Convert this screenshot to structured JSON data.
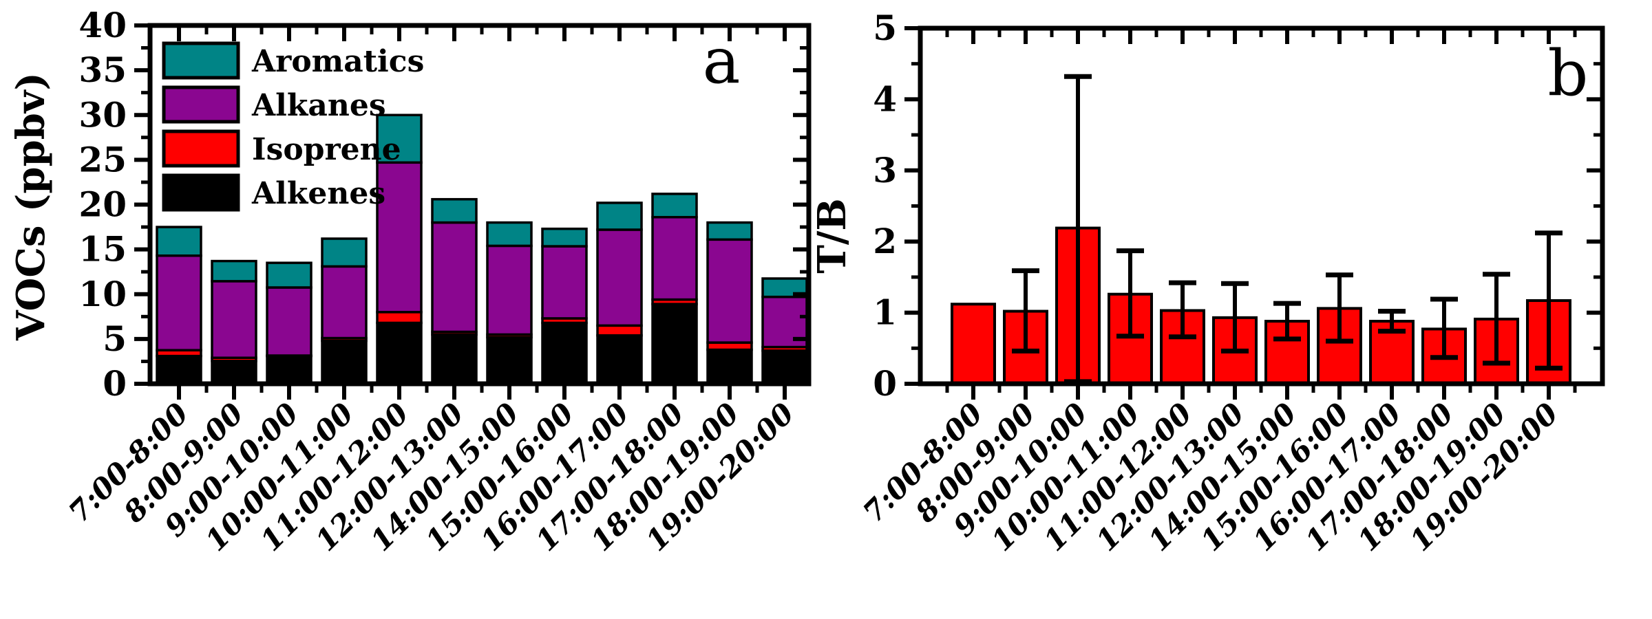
{
  "figure": {
    "background": "#ffffff",
    "panel_a_letter": "a",
    "panel_b_letter": "b",
    "legend_items": [
      {
        "label": "Aromatics",
        "color": "#008486"
      },
      {
        "label": "Alkanes",
        "color": "#8A0690"
      },
      {
        "label": "Isoprene",
        "color": "#FF0000"
      },
      {
        "label": "Alkenes",
        "color": "#000000"
      }
    ]
  },
  "chart_data": [
    {
      "type": "bar",
      "stacked": true,
      "panel_label": "a",
      "title": "",
      "xlabel": "",
      "ylabel": "VOCs (ppbv)",
      "ylim": [
        0,
        40
      ],
      "y_tick_labels": [
        "0",
        "5",
        "10",
        "15",
        "20",
        "25",
        "30",
        "35",
        "40"
      ],
      "y_minor_step": 2.5,
      "grid": false,
      "legend_position": "top-left",
      "categories": [
        "7:00-8:00",
        "8:00-9:00",
        "9:00-10:00",
        "10:00-11:00",
        "11:00-12:00",
        "12:00-13:00",
        "14:00-15:00",
        "15:00-16:00",
        "16:00-17:00",
        "17:00-18:00",
        "18:00-19:00",
        "19:00-20:00"
      ],
      "series": [
        {
          "name": "Alkenes",
          "color": "#000000",
          "values": [
            3.1,
            2.55,
            3.1,
            4.8,
            6.8,
            5.5,
            5.2,
            6.8,
            5.4,
            8.9,
            3.8,
            3.7
          ]
        },
        {
          "name": "Isoprene",
          "color": "#FF0000",
          "values": [
            0.65,
            0.35,
            0.05,
            0.3,
            1.2,
            0.3,
            0.3,
            0.5,
            1.1,
            0.5,
            0.8,
            0.4
          ]
        },
        {
          "name": "Alkanes",
          "color": "#8A0690",
          "values": [
            10.55,
            8.55,
            7.6,
            8.0,
            16.7,
            12.2,
            9.9,
            8.05,
            10.7,
            9.2,
            11.5,
            5.6
          ]
        },
        {
          "name": "Aromatics",
          "color": "#008486",
          "values": [
            3.2,
            2.25,
            2.75,
            3.1,
            5.3,
            2.6,
            2.6,
            1.95,
            3.0,
            2.6,
            1.9,
            2.05
          ]
        }
      ],
      "stack_totals": [
        17.5,
        13.7,
        13.5,
        16.2,
        30.0,
        20.6,
        18.0,
        17.3,
        20.2,
        21.2,
        18.0,
        11.75
      ]
    },
    {
      "type": "bar",
      "stacked": false,
      "panel_label": "b",
      "title": "",
      "xlabel": "",
      "ylabel": "T/B",
      "ylim": [
        0,
        5
      ],
      "y_tick_labels": [
        "0",
        "1",
        "2",
        "3",
        "4",
        "5"
      ],
      "y_minor_step": 0.5,
      "grid": false,
      "categories": [
        "7:00-8:00",
        "8:00-9:00",
        "9:00-10:00",
        "10:00-11:00",
        "11:00-12:00",
        "12:00-13:00",
        "14:00-15:00",
        "15:00-16:00",
        "16:00-17:00",
        "17:00-18:00",
        "18:00-19:00",
        "19:00-20:00"
      ],
      "series": [
        {
          "name": "T/B",
          "color": "#FF0000",
          "values": [
            1.12,
            1.02,
            2.19,
            1.26,
            1.03,
            0.93,
            0.88,
            1.06,
            0.88,
            0.77,
            0.91,
            1.17
          ]
        }
      ],
      "error_bars": {
        "low": [
          null,
          0.46,
          0.03,
          0.67,
          0.66,
          0.46,
          0.63,
          0.6,
          0.74,
          0.37,
          0.29,
          0.22
        ],
        "high": [
          null,
          1.59,
          4.32,
          1.87,
          1.42,
          1.41,
          1.13,
          1.53,
          1.02,
          1.19,
          1.54,
          2.12
        ]
      }
    }
  ]
}
